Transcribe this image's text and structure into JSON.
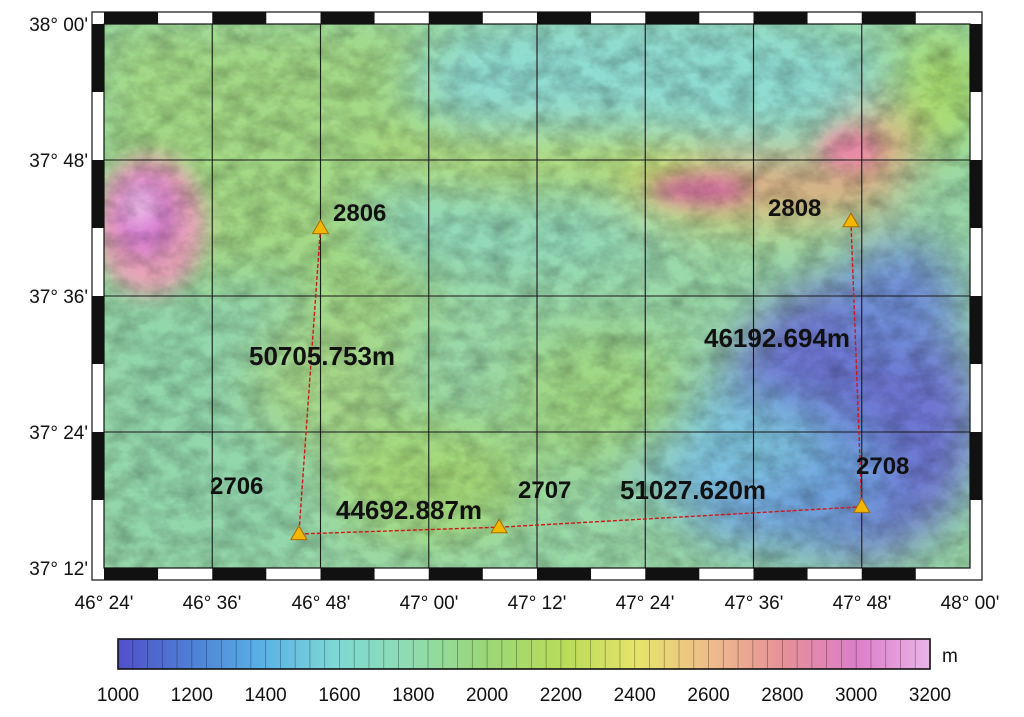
{
  "map": {
    "lat_labels": [
      "38° 00'",
      "37° 48'",
      "37° 36'",
      "37° 24'",
      "37° 12'"
    ],
    "lon_labels": [
      "46° 24'",
      "46° 36'",
      "46° 48'",
      "47° 00'",
      "47° 12'",
      "47° 24'",
      "47° 36'",
      "47° 48'",
      "48° 00'"
    ],
    "stations": [
      {
        "id": "2806",
        "lon": 46.8,
        "lat": 37.7
      },
      {
        "id": "2808",
        "lon": 47.78,
        "lat": 37.71
      },
      {
        "id": "2706",
        "lon": 46.76,
        "lat": 37.25
      },
      {
        "id": "2707",
        "lon": 47.13,
        "lat": 37.26
      },
      {
        "id": "2708",
        "lon": 47.8,
        "lat": 37.29
      }
    ],
    "baselines": [
      {
        "from": "2806",
        "to": "2706",
        "label": "50705.753m"
      },
      {
        "from": "2706",
        "to": "2707",
        "label": "44692.887m"
      },
      {
        "from": "2707",
        "to": "2708",
        "label": "51027.620m"
      },
      {
        "from": "2808",
        "to": "2708",
        "label": "46192.694m"
      }
    ],
    "extent": {
      "lon": [
        46.4,
        48.0
      ],
      "lat": [
        37.2,
        38.0
      ]
    }
  },
  "colorbar": {
    "unit": "m",
    "tick_labels": [
      "1000",
      "1200",
      "1400",
      "1600",
      "1800",
      "2000",
      "2200",
      "2400",
      "2600",
      "2800",
      "3000",
      "3200"
    ],
    "colors": [
      "#5050c8",
      "#4f7fd6",
      "#59b3e6",
      "#7fd8d4",
      "#8fdcb0",
      "#9ad678",
      "#b8dc5a",
      "#e6e46a",
      "#eebc8c",
      "#e69098",
      "#dc7ec8",
      "#eab4e8"
    ]
  }
}
